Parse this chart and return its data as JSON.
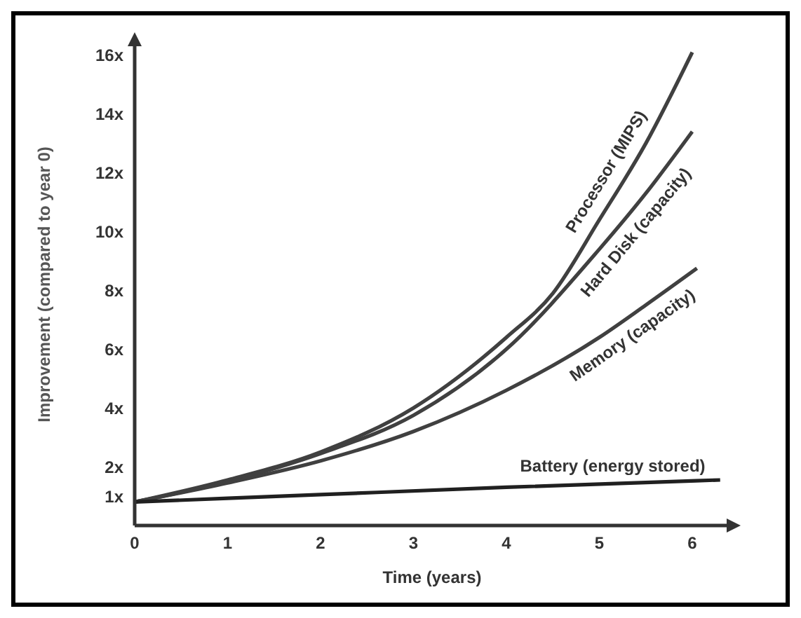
{
  "chart_data": {
    "type": "line",
    "xlabel": "Time (years)",
    "ylabel": "Improvement (compared to year 0)",
    "xlim": [
      0,
      6.4
    ],
    "ylim": [
      0,
      16.4
    ],
    "xticks": [
      0,
      1,
      2,
      3,
      4,
      5,
      6
    ],
    "yticks": [
      {
        "value": 1,
        "label": "1x"
      },
      {
        "value": 2,
        "label": "2x"
      },
      {
        "value": 4,
        "label": "4x"
      },
      {
        "value": 6,
        "label": "6x"
      },
      {
        "value": 8,
        "label": "8x"
      },
      {
        "value": 10,
        "label": "10x"
      },
      {
        "value": 12,
        "label": "12x"
      },
      {
        "value": 14,
        "label": "14x"
      },
      {
        "value": 16,
        "label": "16x"
      }
    ],
    "marker": "none",
    "line_style": "solid",
    "series": [
      {
        "name": "Processor (MIPS)",
        "color": "#404040",
        "x": [
          0,
          1,
          2,
          3,
          4,
          4.5,
          5,
          5.5,
          6
        ],
        "values": [
          0.8,
          1.55,
          2.5,
          4.0,
          6.4,
          7.9,
          10.4,
          13,
          16.1
        ]
      },
      {
        "name": "Hard Disk (capacity)",
        "color": "#404040",
        "x": [
          0,
          1,
          2,
          3,
          4,
          5,
          5.5,
          6
        ],
        "values": [
          0.8,
          1.5,
          2.45,
          3.75,
          6.0,
          9.4,
          11.3,
          13.4
        ]
      },
      {
        "name": "Memory  (capacity)",
        "color": "#404040",
        "x": [
          0,
          1,
          2,
          3,
          4,
          5,
          5.5,
          6.05
        ],
        "values": [
          0.8,
          1.45,
          2.2,
          3.2,
          4.6,
          6.4,
          7.5,
          8.75
        ]
      },
      {
        "name": "Battery (energy stored)",
        "color": "#202020",
        "x": [
          0,
          2,
          4,
          6.3
        ],
        "values": [
          0.8,
          1.05,
          1.3,
          1.55
        ]
      }
    ]
  }
}
